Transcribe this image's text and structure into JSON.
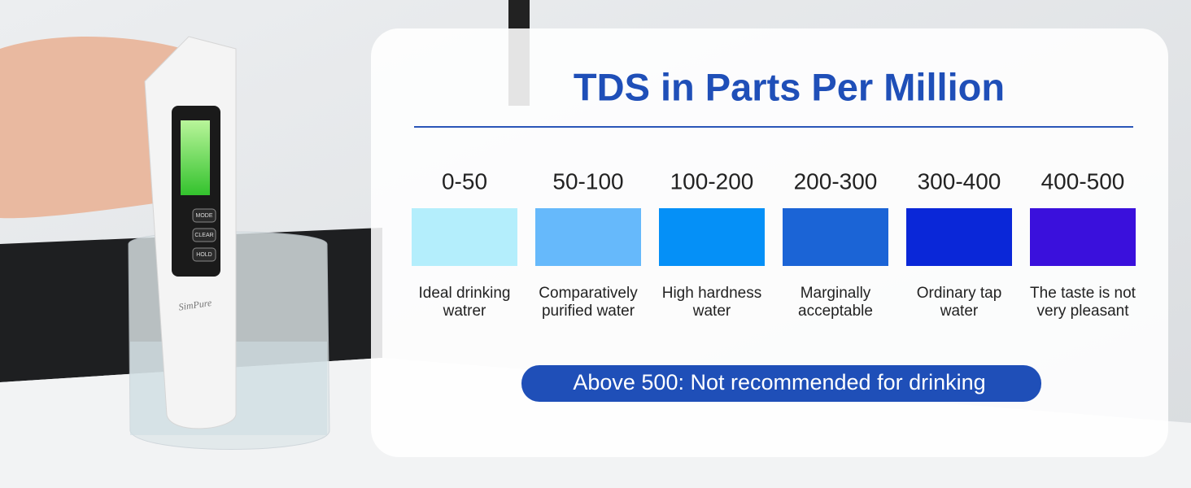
{
  "card": {
    "title": "TDS in Parts Per Million",
    "levels": [
      {
        "range": "0-50",
        "color": "#b4eefc",
        "description": [
          "Ideal drinking",
          "watrer"
        ]
      },
      {
        "range": "50-100",
        "color": "#66b9fb",
        "description": [
          "Comparatively",
          "purified water"
        ]
      },
      {
        "range": "100-200",
        "color": "#0590f7",
        "description": [
          "High hardness",
          "water"
        ]
      },
      {
        "range": "200-300",
        "color": "#1b64d6",
        "description": [
          "Marginally",
          "acceptable"
        ]
      },
      {
        "range": "300-400",
        "color": "#0a27d8",
        "description": [
          "Ordinary tap",
          "water"
        ]
      },
      {
        "range": "400-500",
        "color": "#3a10dc",
        "description": [
          "The taste is not",
          "very pleasant"
        ]
      }
    ],
    "note": "Above 500: Not recommended for drinking"
  },
  "device": {
    "brand": "SimPure",
    "buttons": [
      "MODE",
      "CLEAR",
      "HOLD"
    ]
  }
}
